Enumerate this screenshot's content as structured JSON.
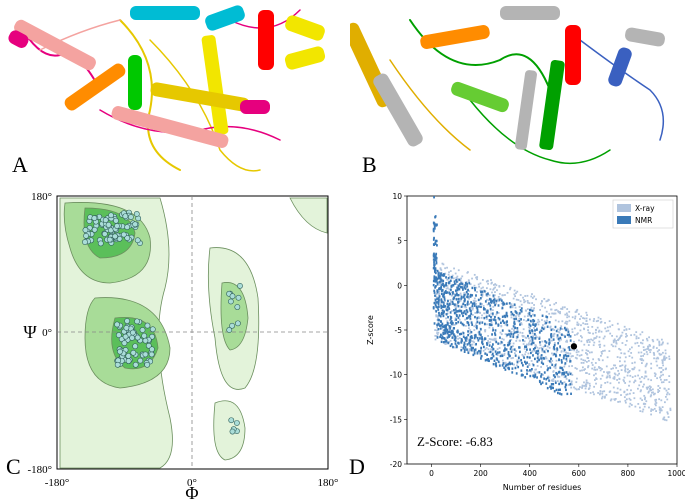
{
  "figure": {
    "panel_labels": [
      "A",
      "B",
      "C",
      "D"
    ]
  },
  "panel_a": {
    "description_colors": [
      "#e6007e",
      "#00bcd4",
      "#f2e600",
      "#ff0000",
      "#00c800",
      "#ff8c00",
      "#f4a3a0"
    ]
  },
  "panel_b": {
    "description_colors": [
      "#e0ae00",
      "#ff5000",
      "#00a000",
      "#3a60c0",
      "#b4b4b4"
    ]
  },
  "panel_c": {
    "x_ticks": [
      "-180°",
      "0°",
      "180°"
    ],
    "y_ticks": [
      "180°",
      "0°",
      "-180°"
    ],
    "x_axis_label": "Φ",
    "y_axis_label": "Ψ",
    "colors": {
      "general": "#e3f3da",
      "allowed": "#a8dc98",
      "favored": "#5bbf5a",
      "point": "#aaddd8"
    }
  },
  "chart_data": {
    "type": "scatter",
    "title": "",
    "xlabel": "Number of residues",
    "ylabel": "Z-score",
    "xlim": [
      -100,
      1000
    ],
    "ylim": [
      -20,
      10
    ],
    "x_ticks": [
      "0",
      "200",
      "400",
      "600",
      "800",
      "1000"
    ],
    "y_ticks": [
      "10",
      "5",
      "0",
      "-5",
      "-10",
      "-15",
      "-20"
    ],
    "legend": {
      "position": "top-right",
      "entries": [
        "X-ray",
        "NMR"
      ]
    },
    "series": [
      {
        "name": "X-ray",
        "color": "#b0c4de"
      },
      {
        "name": "NMR",
        "color": "#3a7ab8"
      }
    ],
    "highlight_point": {
      "x": 580,
      "y": -6.83
    },
    "annotation": "Z-Score: -6.83"
  }
}
